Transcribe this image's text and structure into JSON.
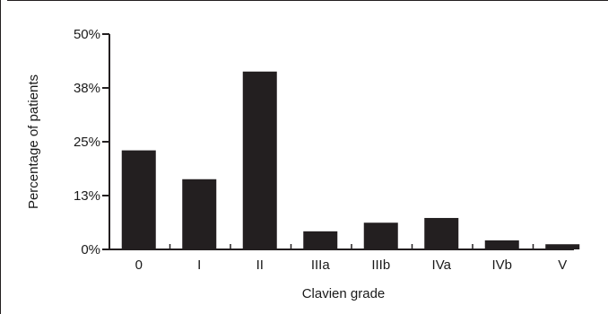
{
  "chart_data": {
    "type": "bar",
    "categories": [
      "0",
      "I",
      "II",
      "IIIa",
      "IIIb",
      "IVa",
      "IVb",
      "V"
    ],
    "values": [
      23,
      16.3,
      41.3,
      4.2,
      6.2,
      7.3,
      2.1,
      1.2
    ],
    "ylim": [
      0,
      50
    ],
    "yticks": [
      0,
      12.5,
      25,
      37.5,
      50
    ],
    "ytick_labels": [
      "0%",
      "13%",
      "25%",
      "38%",
      "50%"
    ],
    "xlabel": "Clavien grade",
    "ylabel": "Percentage of patients",
    "grid": false,
    "legend": "none",
    "bar_color": "#231f20",
    "axis_color": "#231f20"
  }
}
